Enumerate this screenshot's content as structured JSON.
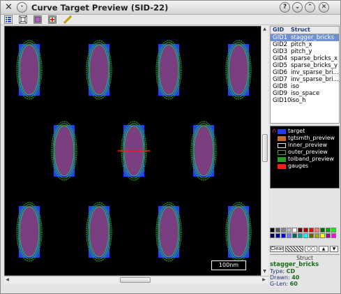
{
  "window": {
    "title": "Curve Target Preview (SID-22)",
    "controls": [
      "?",
      "⌄",
      "⌃",
      "✕"
    ]
  },
  "canvas": {
    "scale_bar": "100nm"
  },
  "gid_table": {
    "headers": [
      "GID",
      "Struct"
    ],
    "rows": [
      {
        "gid": "GID1",
        "struct": "stagger_bricks",
        "selected": true
      },
      {
        "gid": "GID2",
        "struct": "pitch_x"
      },
      {
        "gid": "GID3",
        "struct": "pitch_y"
      },
      {
        "gid": "GID4",
        "struct": "sparse_bricks_x"
      },
      {
        "gid": "GID5",
        "struct": "sparse_bricks_y"
      },
      {
        "gid": "GID6",
        "struct": "inv_sparse_bri..."
      },
      {
        "gid": "GID7",
        "struct": "inv_sparse_bri..."
      },
      {
        "gid": "GID8",
        "struct": "iso"
      },
      {
        "gid": "GID9",
        "struct": "iso_space"
      },
      {
        "gid": "GID10",
        "struct": "iso_h"
      }
    ]
  },
  "legend": [
    {
      "label": "target",
      "color": "#1f3cff",
      "fill": true
    },
    {
      "label": "tgtsmth_preview",
      "color": "#c46a2a",
      "fill": true
    },
    {
      "label": "inner_preview",
      "color": "#e6e6e6",
      "fill": false
    },
    {
      "label": "outer_preview",
      "color": "#3aa83a",
      "fill": false
    },
    {
      "label": "tolband_preview",
      "color": "#23a023",
      "fill": true
    },
    {
      "label": "gauges",
      "color": "#ff1a1a",
      "fill": true
    }
  ],
  "palette": {
    "colors": [
      "#000000",
      "#555555",
      "#888888",
      "#bbbbbb",
      "#ffffff",
      "#660000",
      "#aa0000",
      "#ff0000",
      "#ff7777",
      "#006600",
      "#00aa00",
      "#00ff00",
      "#000066",
      "#0000aa",
      "#0000ff",
      "#7777ff",
      "#006666",
      "#00aaaa",
      "#00ffff",
      "#666600",
      "#aaaa00",
      "#ffff00",
      "#aa00aa",
      "#ff00ff"
    ],
    "clear_label": "Clear"
  },
  "info": {
    "section": "Struct",
    "name": "stagger_bricks",
    "type_label": "Type:",
    "type_value": "CD",
    "drawn_label": "Drawn:",
    "drawn_value": "40",
    "glen_label": "G-Len:",
    "glen_value": "60"
  }
}
